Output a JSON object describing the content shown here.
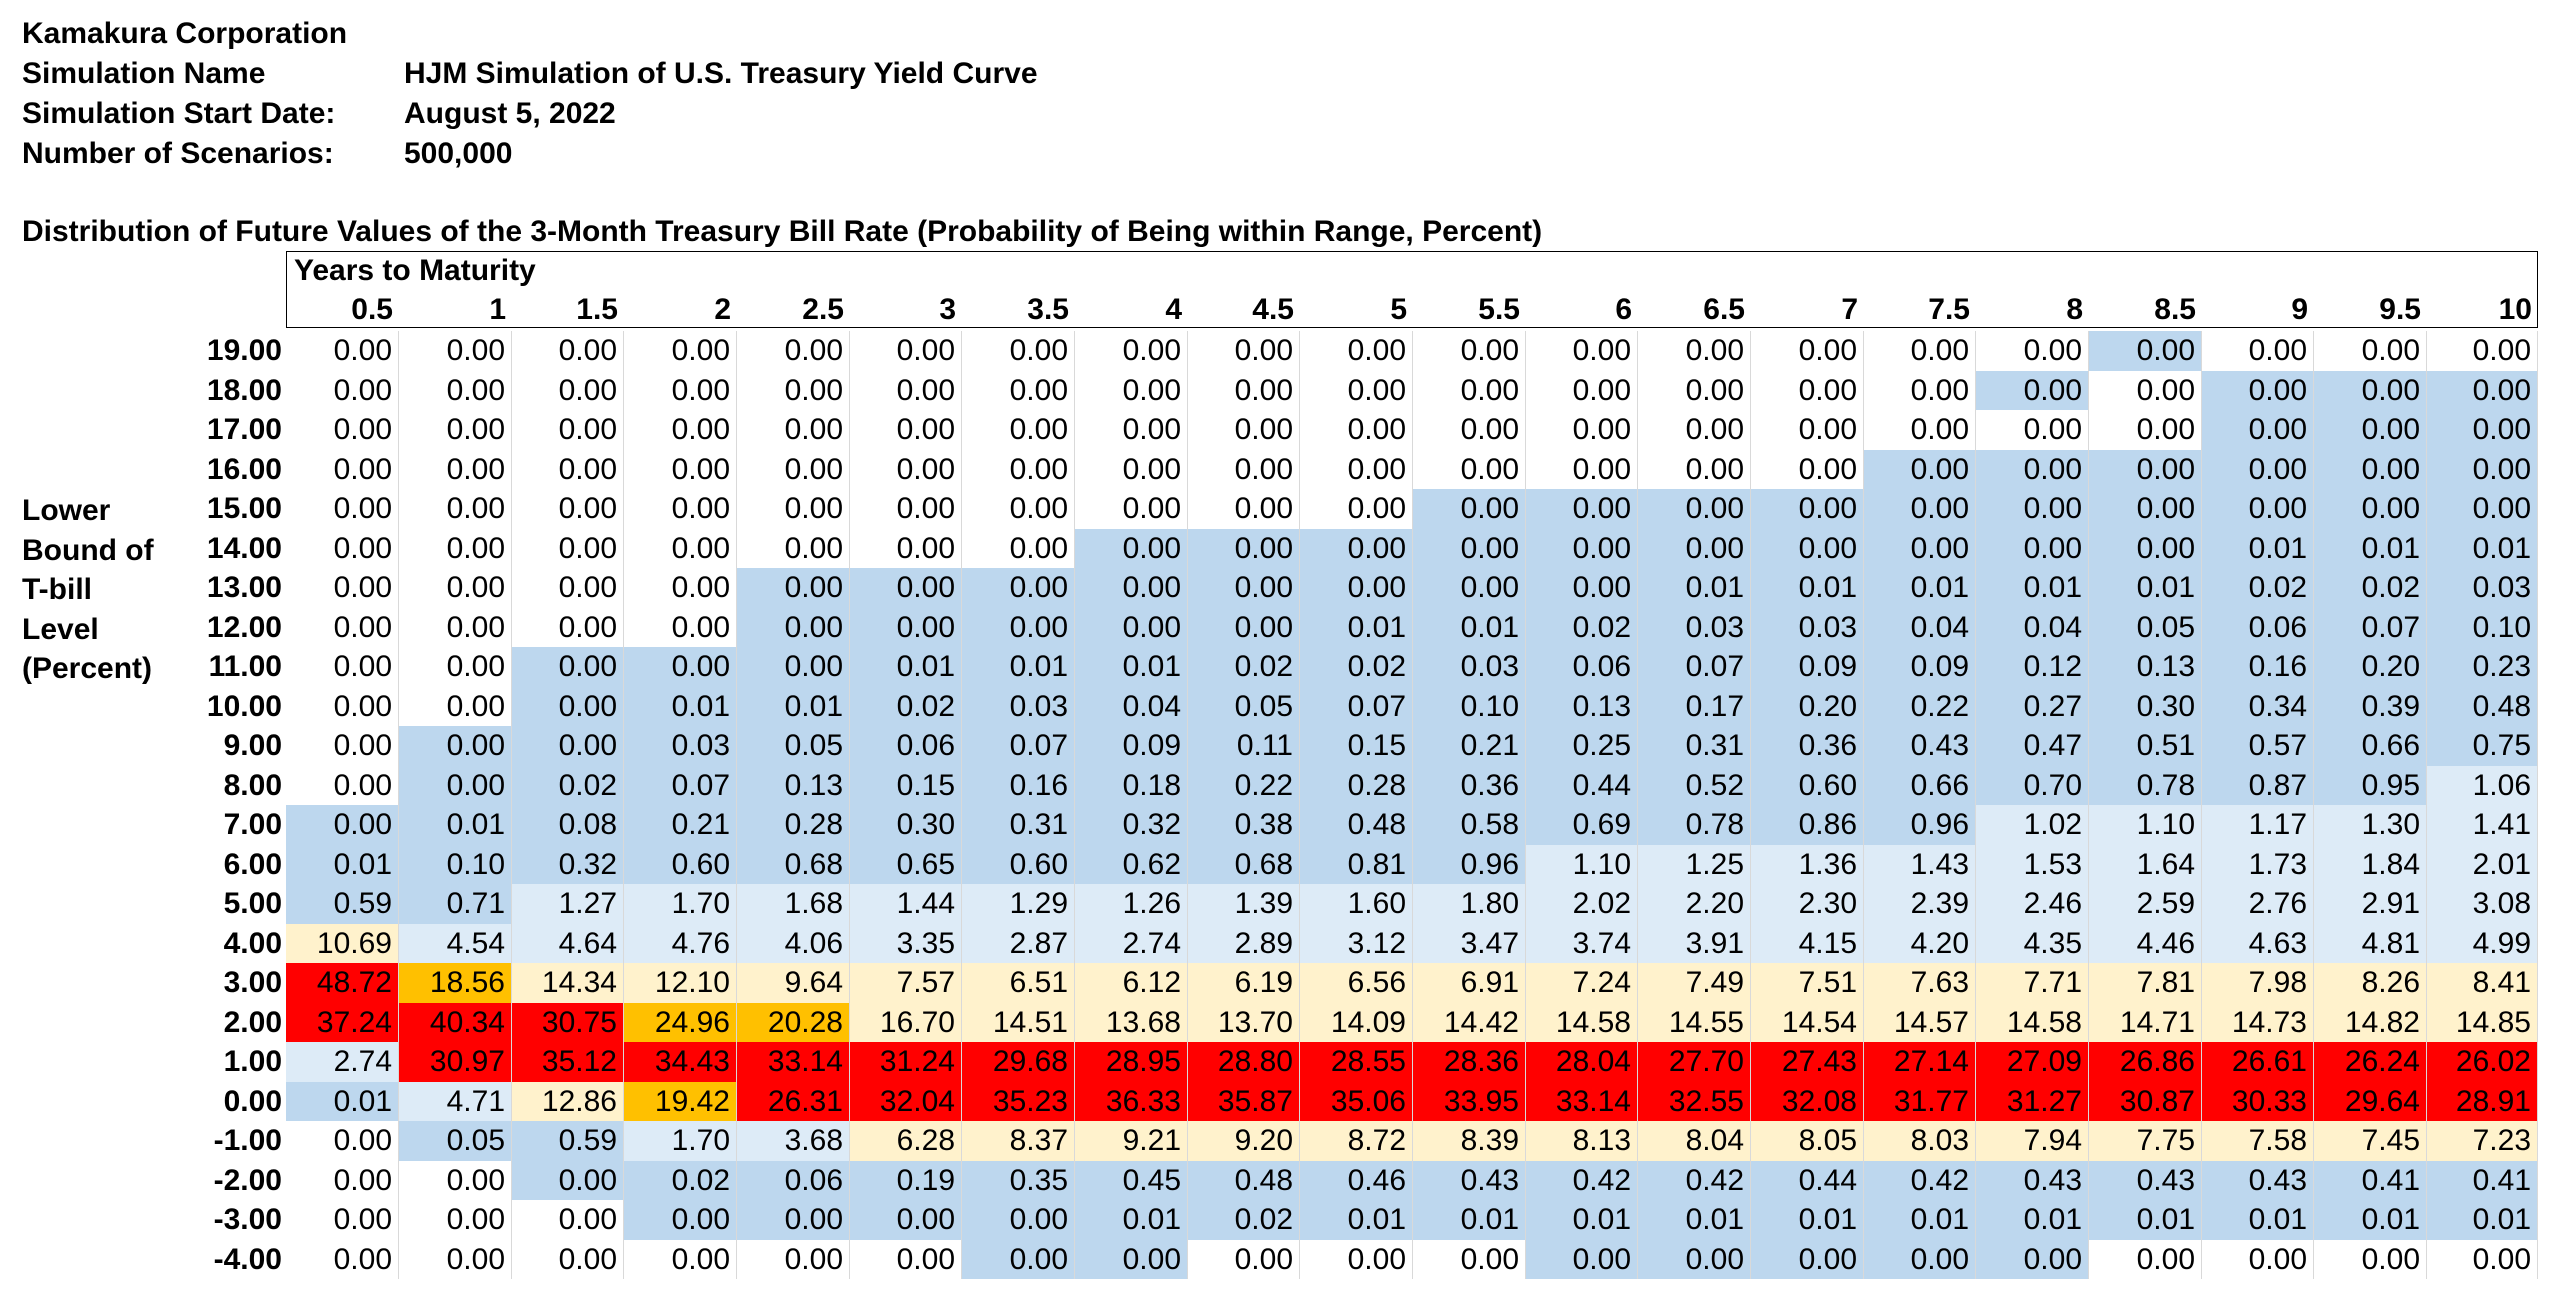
{
  "header": {
    "company": "Kamakura Corporation",
    "simulation_name_label": "Simulation Name",
    "simulation_name": "HJM Simulation of U.S. Treasury Yield Curve",
    "start_date_label": "Simulation Start Date:",
    "start_date": "August 5, 2022",
    "scenarios_label": "Number of Scenarios:",
    "scenarios": "500,000"
  },
  "table": {
    "title": "Distribution of Future Values of the 3-Month Treasury Bill Rate (Probability of Being within Range, Percent)",
    "column_axis_label": "Years to Maturity",
    "row_axis_label": [
      "Lower",
      "Bound of",
      "T-bill",
      "Level",
      "(Percent)"
    ],
    "colors": {
      "none": "#ffffff",
      "blue": "#bdd7ee",
      "light_blue": "#ddebf7",
      "yellow": "#fff2cc",
      "gold": "#ffc000",
      "red": "#ff0000"
    },
    "columns": [
      "0.5",
      "1",
      "1.5",
      "2",
      "2.5",
      "3",
      "3.5",
      "4",
      "4.5",
      "5",
      "5.5",
      "6",
      "6.5",
      "7",
      "7.5",
      "8",
      "8.5",
      "9",
      "9.5",
      "10"
    ],
    "rows": [
      {
        "label": "19.00",
        "values": [
          "0.00",
          "0.00",
          "0.00",
          "0.00",
          "0.00",
          "0.00",
          "0.00",
          "0.00",
          "0.00",
          "0.00",
          "0.00",
          "0.00",
          "0.00",
          "0.00",
          "0.00",
          "0.00",
          "0.00",
          "0.00",
          "0.00",
          "0.00"
        ],
        "shades": "0000000000000000B000"
      },
      {
        "label": "18.00",
        "values": [
          "0.00",
          "0.00",
          "0.00",
          "0.00",
          "0.00",
          "0.00",
          "0.00",
          "0.00",
          "0.00",
          "0.00",
          "0.00",
          "0.00",
          "0.00",
          "0.00",
          "0.00",
          "0.00",
          "0.00",
          "0.00",
          "0.00",
          "0.00"
        ],
        "shades": "000000000000000B0BBB"
      },
      {
        "label": "17.00",
        "values": [
          "0.00",
          "0.00",
          "0.00",
          "0.00",
          "0.00",
          "0.00",
          "0.00",
          "0.00",
          "0.00",
          "0.00",
          "0.00",
          "0.00",
          "0.00",
          "0.00",
          "0.00",
          "0.00",
          "0.00",
          "0.00",
          "0.00",
          "0.00"
        ],
        "shades": "00000000000000000BBB"
      },
      {
        "label": "16.00",
        "values": [
          "0.00",
          "0.00",
          "0.00",
          "0.00",
          "0.00",
          "0.00",
          "0.00",
          "0.00",
          "0.00",
          "0.00",
          "0.00",
          "0.00",
          "0.00",
          "0.00",
          "0.00",
          "0.00",
          "0.00",
          "0.00",
          "0.00",
          "0.00"
        ],
        "shades": "00000000000000BBBBBB"
      },
      {
        "label": "15.00",
        "values": [
          "0.00",
          "0.00",
          "0.00",
          "0.00",
          "0.00",
          "0.00",
          "0.00",
          "0.00",
          "0.00",
          "0.00",
          "0.00",
          "0.00",
          "0.00",
          "0.00",
          "0.00",
          "0.00",
          "0.00",
          "0.00",
          "0.00",
          "0.00"
        ],
        "shades": "0000000000BBBBBBBBBB"
      },
      {
        "label": "14.00",
        "values": [
          "0.00",
          "0.00",
          "0.00",
          "0.00",
          "0.00",
          "0.00",
          "0.00",
          "0.00",
          "0.00",
          "0.00",
          "0.00",
          "0.00",
          "0.00",
          "0.00",
          "0.00",
          "0.00",
          "0.00",
          "0.01",
          "0.01",
          "0.01"
        ],
        "shades": "0000000BBBBBBBBBBBBB"
      },
      {
        "label": "13.00",
        "values": [
          "0.00",
          "0.00",
          "0.00",
          "0.00",
          "0.00",
          "0.00",
          "0.00",
          "0.00",
          "0.00",
          "0.00",
          "0.00",
          "0.00",
          "0.01",
          "0.01",
          "0.01",
          "0.01",
          "0.01",
          "0.02",
          "0.02",
          "0.03"
        ],
        "shades": "0000BBBBBBBBBBBBBBBB"
      },
      {
        "label": "12.00",
        "values": [
          "0.00",
          "0.00",
          "0.00",
          "0.00",
          "0.00",
          "0.00",
          "0.00",
          "0.00",
          "0.00",
          "0.01",
          "0.01",
          "0.02",
          "0.03",
          "0.03",
          "0.04",
          "0.04",
          "0.05",
          "0.06",
          "0.07",
          "0.10"
        ],
        "shades": "0000BBBBBBBBBBBBBBBB"
      },
      {
        "label": "11.00",
        "values": [
          "0.00",
          "0.00",
          "0.00",
          "0.00",
          "0.00",
          "0.01",
          "0.01",
          "0.01",
          "0.02",
          "0.02",
          "0.03",
          "0.06",
          "0.07",
          "0.09",
          "0.09",
          "0.12",
          "0.13",
          "0.16",
          "0.20",
          "0.23"
        ],
        "shades": "00BBBBBBBBBBBBBBBBBB"
      },
      {
        "label": "10.00",
        "values": [
          "0.00",
          "0.00",
          "0.00",
          "0.01",
          "0.01",
          "0.02",
          "0.03",
          "0.04",
          "0.05",
          "0.07",
          "0.10",
          "0.13",
          "0.17",
          "0.20",
          "0.22",
          "0.27",
          "0.30",
          "0.34",
          "0.39",
          "0.48"
        ],
        "shades": "00BBBBBBBBBBBBBBBBBB"
      },
      {
        "label": "9.00",
        "values": [
          "0.00",
          "0.00",
          "0.00",
          "0.03",
          "0.05",
          "0.06",
          "0.07",
          "0.09",
          "0.11",
          "0.15",
          "0.21",
          "0.25",
          "0.31",
          "0.36",
          "0.43",
          "0.47",
          "0.51",
          "0.57",
          "0.66",
          "0.75"
        ],
        "shades": "0BBBBBBBBBBBBBBBBBBB"
      },
      {
        "label": "8.00",
        "values": [
          "0.00",
          "0.00",
          "0.02",
          "0.07",
          "0.13",
          "0.15",
          "0.16",
          "0.18",
          "0.22",
          "0.28",
          "0.36",
          "0.44",
          "0.52",
          "0.60",
          "0.66",
          "0.70",
          "0.78",
          "0.87",
          "0.95",
          "1.06"
        ],
        "shades": "0BBBBBBBBBBBBBBBBBBL"
      },
      {
        "label": "7.00",
        "values": [
          "0.00",
          "0.01",
          "0.08",
          "0.21",
          "0.28",
          "0.30",
          "0.31",
          "0.32",
          "0.38",
          "0.48",
          "0.58",
          "0.69",
          "0.78",
          "0.86",
          "0.96",
          "1.02",
          "1.10",
          "1.17",
          "1.30",
          "1.41"
        ],
        "shades": "BBBBBBBBBBBBBBBLLLLL"
      },
      {
        "label": "6.00",
        "values": [
          "0.01",
          "0.10",
          "0.32",
          "0.60",
          "0.68",
          "0.65",
          "0.60",
          "0.62",
          "0.68",
          "0.81",
          "0.96",
          "1.10",
          "1.25",
          "1.36",
          "1.43",
          "1.53",
          "1.64",
          "1.73",
          "1.84",
          "2.01"
        ],
        "shades": "BBBBBBBBBBBLLLLLLLLL"
      },
      {
        "label": "5.00",
        "values": [
          "0.59",
          "0.71",
          "1.27",
          "1.70",
          "1.68",
          "1.44",
          "1.29",
          "1.26",
          "1.39",
          "1.60",
          "1.80",
          "2.02",
          "2.20",
          "2.30",
          "2.39",
          "2.46",
          "2.59",
          "2.76",
          "2.91",
          "3.08"
        ],
        "shades": "BBLLLLLLLLLLLLLLLLLL"
      },
      {
        "label": "4.00",
        "values": [
          "10.69",
          "4.54",
          "4.64",
          "4.76",
          "4.06",
          "3.35",
          "2.87",
          "2.74",
          "2.89",
          "3.12",
          "3.47",
          "3.74",
          "3.91",
          "4.15",
          "4.20",
          "4.35",
          "4.46",
          "4.63",
          "4.81",
          "4.99"
        ],
        "shades": "YLLLLLLLLLLLLLLLLLLL"
      },
      {
        "label": "3.00",
        "values": [
          "48.72",
          "18.56",
          "14.34",
          "12.10",
          "9.64",
          "7.57",
          "6.51",
          "6.12",
          "6.19",
          "6.56",
          "6.91",
          "7.24",
          "7.49",
          "7.51",
          "7.63",
          "7.71",
          "7.81",
          "7.98",
          "8.26",
          "8.41"
        ],
        "shades": "RGYYYYYYYYYYYYYYYYYY"
      },
      {
        "label": "2.00",
        "values": [
          "37.24",
          "40.34",
          "30.75",
          "24.96",
          "20.28",
          "16.70",
          "14.51",
          "13.68",
          "13.70",
          "14.09",
          "14.42",
          "14.58",
          "14.55",
          "14.54",
          "14.57",
          "14.58",
          "14.71",
          "14.73",
          "14.82",
          "14.85"
        ],
        "shades": "RRRGGYYYYYYYYYYYYYYY"
      },
      {
        "label": "1.00",
        "values": [
          "2.74",
          "30.97",
          "35.12",
          "34.43",
          "33.14",
          "31.24",
          "29.68",
          "28.95",
          "28.80",
          "28.55",
          "28.36",
          "28.04",
          "27.70",
          "27.43",
          "27.14",
          "27.09",
          "26.86",
          "26.61",
          "26.24",
          "26.02"
        ],
        "shades": "LRRRRRRRRRRRRRRRRRRR"
      },
      {
        "label": "0.00",
        "values": [
          "0.01",
          "4.71",
          "12.86",
          "19.42",
          "26.31",
          "32.04",
          "35.23",
          "36.33",
          "35.87",
          "35.06",
          "33.95",
          "33.14",
          "32.55",
          "32.08",
          "31.77",
          "31.27",
          "30.87",
          "30.33",
          "29.64",
          "28.91"
        ],
        "shades": "BLYGRRRRRRRRRRRRRRRR"
      },
      {
        "label": "-1.00",
        "values": [
          "0.00",
          "0.05",
          "0.59",
          "1.70",
          "3.68",
          "6.28",
          "8.37",
          "9.21",
          "9.20",
          "8.72",
          "8.39",
          "8.13",
          "8.04",
          "8.05",
          "8.03",
          "7.94",
          "7.75",
          "7.58",
          "7.45",
          "7.23"
        ],
        "shades": "0BBLLYYYYYYYYYYYYYYY"
      },
      {
        "label": "-2.00",
        "values": [
          "0.00",
          "0.00",
          "0.00",
          "0.02",
          "0.06",
          "0.19",
          "0.35",
          "0.45",
          "0.48",
          "0.46",
          "0.43",
          "0.42",
          "0.42",
          "0.44",
          "0.42",
          "0.43",
          "0.43",
          "0.43",
          "0.41",
          "0.41"
        ],
        "shades": "00BBBBBBBBBBBBBBBBBB"
      },
      {
        "label": "-3.00",
        "values": [
          "0.00",
          "0.00",
          "0.00",
          "0.00",
          "0.00",
          "0.00",
          "0.00",
          "0.01",
          "0.02",
          "0.01",
          "0.01",
          "0.01",
          "0.01",
          "0.01",
          "0.01",
          "0.01",
          "0.01",
          "0.01",
          "0.01",
          "0.01"
        ],
        "shades": "000BBBBBBBBBBBBBBBBB"
      },
      {
        "label": "-4.00",
        "values": [
          "0.00",
          "0.00",
          "0.00",
          "0.00",
          "0.00",
          "0.00",
          "0.00",
          "0.00",
          "0.00",
          "0.00",
          "0.00",
          "0.00",
          "0.00",
          "0.00",
          "0.00",
          "0.00",
          "0.00",
          "0.00",
          "0.00",
          "0.00"
        ],
        "shades": "000000BB000BBBBB0000"
      }
    ]
  }
}
